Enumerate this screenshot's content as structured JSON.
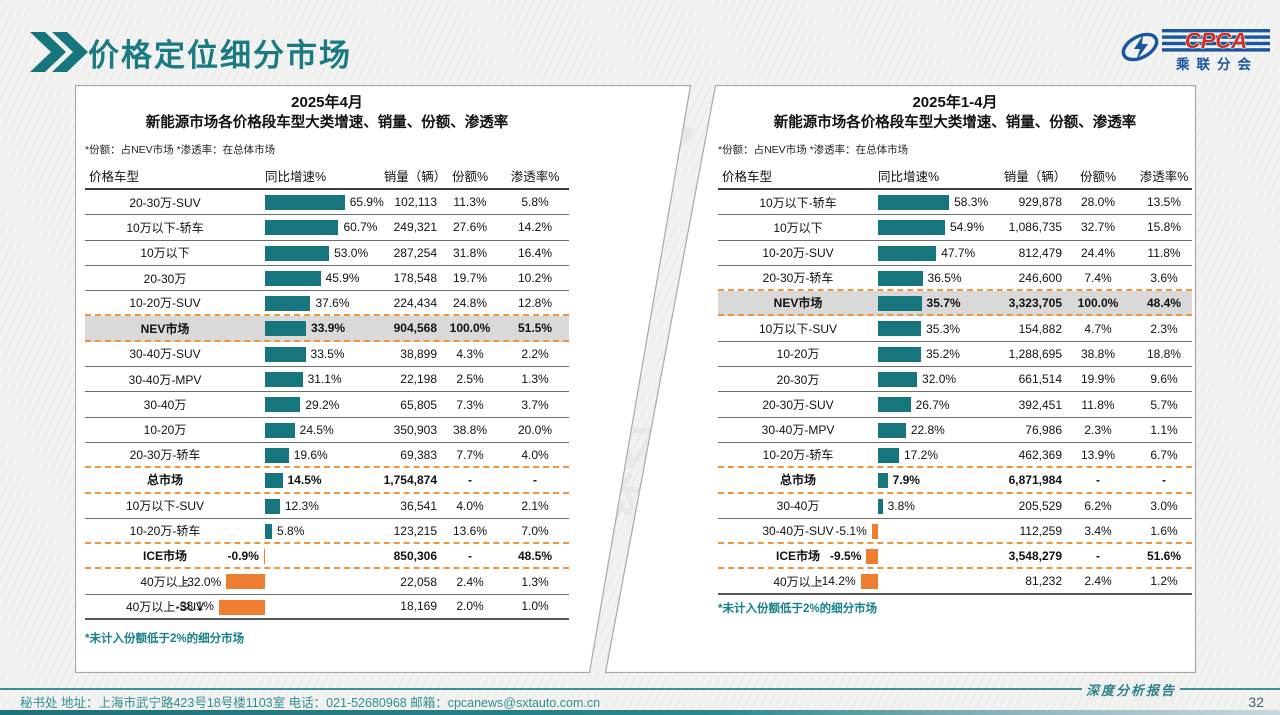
{
  "header": {
    "title": "价格定位细分市场"
  },
  "logo": {
    "acronym": "CPCA",
    "chinese_name": "乘联分会"
  },
  "watermark": "CPCA",
  "panels": [
    {
      "title_line1": "2025年4月",
      "title_line2": "新能源市场各价格段车型大类增速、销量、份额、渗透率",
      "note": "*份额：占NEV市场   *渗透率：在总体市场",
      "footnote": "*未计入份额低于2%的细分市场",
      "columns": [
        "价格车型",
        "同比增速%",
        "销量（辆）",
        "份额%",
        "渗透率%"
      ],
      "rows": [
        {
          "label": "20-30万-SUV",
          "growth": 65.9,
          "growth_label": "65.9%",
          "volume": "102,113",
          "share": "11.3%",
          "penetration": "5.8%",
          "sep": "solid",
          "bold": false,
          "shaded": false
        },
        {
          "label": "10万以下-轿车",
          "growth": 60.7,
          "growth_label": "60.7%",
          "volume": "249,321",
          "share": "27.6%",
          "penetration": "14.2%",
          "sep": "solid",
          "bold": false,
          "shaded": false
        },
        {
          "label": "10万以下",
          "growth": 53.0,
          "growth_label": "53.0%",
          "volume": "287,254",
          "share": "31.8%",
          "penetration": "16.4%",
          "sep": "solid",
          "bold": false,
          "shaded": false
        },
        {
          "label": "20-30万",
          "growth": 45.9,
          "growth_label": "45.9%",
          "volume": "178,548",
          "share": "19.7%",
          "penetration": "10.2%",
          "sep": "solid",
          "bold": false,
          "shaded": false
        },
        {
          "label": "10-20万-SUV",
          "growth": 37.6,
          "growth_label": "37.6%",
          "volume": "224,434",
          "share": "24.8%",
          "penetration": "12.8%",
          "sep": "dash",
          "bold": false,
          "shaded": false
        },
        {
          "label": "NEV市场",
          "growth": 33.9,
          "growth_label": "33.9%",
          "volume": "904,568",
          "share": "100.0%",
          "penetration": "51.5%",
          "sep": "dash",
          "bold": true,
          "shaded": true
        },
        {
          "label": "30-40万-SUV",
          "growth": 33.5,
          "growth_label": "33.5%",
          "volume": "38,899",
          "share": "4.3%",
          "penetration": "2.2%",
          "sep": "solid",
          "bold": false,
          "shaded": false
        },
        {
          "label": "30-40万-MPV",
          "growth": 31.1,
          "growth_label": "31.1%",
          "volume": "22,198",
          "share": "2.5%",
          "penetration": "1.3%",
          "sep": "solid",
          "bold": false,
          "shaded": false
        },
        {
          "label": "30-40万",
          "growth": 29.2,
          "growth_label": "29.2%",
          "volume": "65,805",
          "share": "7.3%",
          "penetration": "3.7%",
          "sep": "solid",
          "bold": false,
          "shaded": false
        },
        {
          "label": "10-20万",
          "growth": 24.5,
          "growth_label": "24.5%",
          "volume": "350,903",
          "share": "38.8%",
          "penetration": "20.0%",
          "sep": "solid",
          "bold": false,
          "shaded": false
        },
        {
          "label": "20-30万-轿车",
          "growth": 19.6,
          "growth_label": "19.6%",
          "volume": "69,383",
          "share": "7.7%",
          "penetration": "4.0%",
          "sep": "dash",
          "bold": false,
          "shaded": false
        },
        {
          "label": "总市场",
          "growth": 14.5,
          "growth_label": "14.5%",
          "volume": "1,754,874",
          "share": "-",
          "penetration": "-",
          "sep": "dash",
          "bold": true,
          "shaded": false
        },
        {
          "label": "10万以下-SUV",
          "growth": 12.3,
          "growth_label": "12.3%",
          "volume": "36,541",
          "share": "4.0%",
          "penetration": "2.1%",
          "sep": "solid",
          "bold": false,
          "shaded": false
        },
        {
          "label": "10-20万-轿车",
          "growth": 5.8,
          "growth_label": "5.8%",
          "volume": "123,215",
          "share": "13.6%",
          "penetration": "7.0%",
          "sep": "dash",
          "bold": false,
          "shaded": false
        },
        {
          "label": "ICE市场",
          "growth": -0.9,
          "growth_label": "-0.9%",
          "volume": "850,306",
          "share": "-",
          "penetration": "48.5%",
          "sep": "dash",
          "bold": true,
          "shaded": false
        },
        {
          "label": "40万以上",
          "growth": -32.0,
          "growth_label": "-32.0%",
          "volume": "22,058",
          "share": "2.4%",
          "penetration": "1.3%",
          "sep": "solid",
          "bold": false,
          "shaded": false
        },
        {
          "label": "40万以上-SUV",
          "growth": -38.1,
          "growth_label": "-38.1%",
          "volume": "18,169",
          "share": "2.0%",
          "penetration": "1.0%",
          "sep": "thick",
          "bold": false,
          "shaded": false
        }
      ]
    },
    {
      "title_line1": "2025年1-4月",
      "title_line2": "新能源市场各价格段车型大类增速、销量、份额、渗透率",
      "note": "*份额：占NEV市场   *渗透率：在总体市场",
      "footnote": "*未计入份额低于2%的细分市场",
      "columns": [
        "价格车型",
        "同比增速%",
        "销量（辆）",
        "份额%",
        "渗透率%"
      ],
      "rows": [
        {
          "label": "10万以下-轿车",
          "growth": 58.3,
          "growth_label": "58.3%",
          "volume": "929,878",
          "share": "28.0%",
          "penetration": "13.5%",
          "sep": "solid",
          "bold": false,
          "shaded": false
        },
        {
          "label": "10万以下",
          "growth": 54.9,
          "growth_label": "54.9%",
          "volume": "1,086,735",
          "share": "32.7%",
          "penetration": "15.8%",
          "sep": "solid",
          "bold": false,
          "shaded": false
        },
        {
          "label": "10-20万-SUV",
          "growth": 47.7,
          "growth_label": "47.7%",
          "volume": "812,479",
          "share": "24.4%",
          "penetration": "11.8%",
          "sep": "solid",
          "bold": false,
          "shaded": false
        },
        {
          "label": "20-30万-轿车",
          "growth": 36.5,
          "growth_label": "36.5%",
          "volume": "246,600",
          "share": "7.4%",
          "penetration": "3.6%",
          "sep": "dash",
          "bold": false,
          "shaded": false
        },
        {
          "label": "NEV市场",
          "growth": 35.7,
          "growth_label": "35.7%",
          "volume": "3,323,705",
          "share": "100.0%",
          "penetration": "48.4%",
          "sep": "dash",
          "bold": true,
          "shaded": true
        },
        {
          "label": "10万以下-SUV",
          "growth": 35.3,
          "growth_label": "35.3%",
          "volume": "154,882",
          "share": "4.7%",
          "penetration": "2.3%",
          "sep": "solid",
          "bold": false,
          "shaded": false
        },
        {
          "label": "10-20万",
          "growth": 35.2,
          "growth_label": "35.2%",
          "volume": "1,288,695",
          "share": "38.8%",
          "penetration": "18.8%",
          "sep": "solid",
          "bold": false,
          "shaded": false
        },
        {
          "label": "20-30万",
          "growth": 32.0,
          "growth_label": "32.0%",
          "volume": "661,514",
          "share": "19.9%",
          "penetration": "9.6%",
          "sep": "solid",
          "bold": false,
          "shaded": false
        },
        {
          "label": "20-30万-SUV",
          "growth": 26.7,
          "growth_label": "26.7%",
          "volume": "392,451",
          "share": "11.8%",
          "penetration": "5.7%",
          "sep": "solid",
          "bold": false,
          "shaded": false
        },
        {
          "label": "30-40万-MPV",
          "growth": 22.8,
          "growth_label": "22.8%",
          "volume": "76,986",
          "share": "2.3%",
          "penetration": "1.1%",
          "sep": "solid",
          "bold": false,
          "shaded": false
        },
        {
          "label": "10-20万-轿车",
          "growth": 17.2,
          "growth_label": "17.2%",
          "volume": "462,369",
          "share": "13.9%",
          "penetration": "6.7%",
          "sep": "dash",
          "bold": false,
          "shaded": false
        },
        {
          "label": "总市场",
          "growth": 7.9,
          "growth_label": "7.9%",
          "volume": "6,871,984",
          "share": "-",
          "penetration": "-",
          "sep": "dash",
          "bold": true,
          "shaded": false
        },
        {
          "label": "30-40万",
          "growth": 3.8,
          "growth_label": "3.8%",
          "volume": "205,529",
          "share": "6.2%",
          "penetration": "3.0%",
          "sep": "solid",
          "bold": false,
          "shaded": false
        },
        {
          "label": "30-40万-SUV",
          "growth": -5.1,
          "growth_label": "-5.1%",
          "volume": "112,259",
          "share": "3.4%",
          "penetration": "1.6%",
          "sep": "dash",
          "bold": false,
          "shaded": false
        },
        {
          "label": "ICE市场",
          "growth": -9.5,
          "growth_label": "-9.5%",
          "volume": "3,548,279",
          "share": "-",
          "penetration": "51.6%",
          "sep": "dash",
          "bold": true,
          "shaded": false
        },
        {
          "label": "40万以上",
          "growth": -14.2,
          "growth_label": "-14.2%",
          "volume": "81,232",
          "share": "2.4%",
          "penetration": "1.2%",
          "sep": "thick",
          "bold": false,
          "shaded": false
        }
      ]
    }
  ],
  "footer": {
    "contact": "秘书处   地址：上海市武宁路423号18号楼1103室  电话：021-52680968   邮箱：cpcanews@sxtauto.com.cn",
    "report_label": "深度分析报告",
    "page_number": "32"
  },
  "colors": {
    "teal_bar": "#17767d",
    "orange_bar": "#ed7d31",
    "orange_dash": "#f0953c",
    "title_teal": "#1a7a82",
    "row_shade": "#d9d9d9",
    "footer_teal": "#2f8f94",
    "logo_blue": "#1a55a0",
    "logo_red": "#cf2e21"
  },
  "chart_data": [
    {
      "type": "bar",
      "orientation": "horizontal",
      "title": "2025年4月 新能源市场各价格段车型大类增速、销量、份额、渗透率",
      "categories": [
        "20-30万-SUV",
        "10万以下-轿车",
        "10万以下",
        "20-30万",
        "10-20万-SUV",
        "NEV市场",
        "30-40万-SUV",
        "30-40万-MPV",
        "30-40万",
        "10-20万",
        "20-30万-轿车",
        "总市场",
        "10万以下-SUV",
        "10-20万-轿车",
        "ICE市场",
        "40万以上",
        "40万以上-SUV"
      ],
      "series": [
        {
          "name": "同比增速%",
          "values": [
            65.9,
            60.7,
            53.0,
            45.9,
            37.6,
            33.9,
            33.5,
            31.1,
            29.2,
            24.5,
            19.6,
            14.5,
            12.3,
            5.8,
            -0.9,
            -32.0,
            -38.1
          ]
        },
        {
          "name": "销量（辆）",
          "values": [
            102113,
            249321,
            287254,
            178548,
            224434,
            904568,
            38899,
            22198,
            65805,
            350903,
            69383,
            1754874,
            36541,
            123215,
            850306,
            22058,
            18169
          ]
        },
        {
          "name": "份额%",
          "values": [
            11.3,
            27.6,
            31.8,
            19.7,
            24.8,
            100.0,
            4.3,
            2.5,
            7.3,
            38.8,
            7.7,
            null,
            4.0,
            13.6,
            null,
            2.4,
            2.0
          ]
        },
        {
          "name": "渗透率%",
          "values": [
            5.8,
            14.2,
            16.4,
            10.2,
            12.8,
            51.5,
            2.2,
            1.3,
            3.7,
            20.0,
            4.0,
            null,
            2.1,
            7.0,
            48.5,
            1.3,
            1.0
          ]
        }
      ],
      "legend_position": "none",
      "grid": false
    },
    {
      "type": "bar",
      "orientation": "horizontal",
      "title": "2025年1-4月 新能源市场各价格段车型大类增速、销量、份额、渗透率",
      "categories": [
        "10万以下-轿车",
        "10万以下",
        "10-20万-SUV",
        "20-30万-轿车",
        "NEV市场",
        "10万以下-SUV",
        "10-20万",
        "20-30万",
        "20-30万-SUV",
        "30-40万-MPV",
        "10-20万-轿车",
        "总市场",
        "30-40万",
        "30-40万-SUV",
        "ICE市场",
        "40万以上"
      ],
      "series": [
        {
          "name": "同比增速%",
          "values": [
            58.3,
            54.9,
            47.7,
            36.5,
            35.7,
            35.3,
            35.2,
            32.0,
            26.7,
            22.8,
            17.2,
            7.9,
            3.8,
            -5.1,
            -9.5,
            -14.2
          ]
        },
        {
          "name": "销量（辆）",
          "values": [
            929878,
            1086735,
            812479,
            246600,
            3323705,
            154882,
            1288695,
            661514,
            392451,
            76986,
            462369,
            6871984,
            205529,
            112259,
            3548279,
            81232
          ]
        },
        {
          "name": "份额%",
          "values": [
            28.0,
            32.7,
            24.4,
            7.4,
            100.0,
            4.7,
            38.8,
            19.9,
            11.8,
            2.3,
            13.9,
            null,
            6.2,
            3.4,
            null,
            2.4
          ]
        },
        {
          "name": "渗透率%",
          "values": [
            13.5,
            15.8,
            11.8,
            3.6,
            48.4,
            2.3,
            18.8,
            9.6,
            5.7,
            1.1,
            6.7,
            null,
            3.0,
            1.6,
            51.6,
            1.2
          ]
        }
      ],
      "legend_position": "none",
      "grid": false
    }
  ]
}
